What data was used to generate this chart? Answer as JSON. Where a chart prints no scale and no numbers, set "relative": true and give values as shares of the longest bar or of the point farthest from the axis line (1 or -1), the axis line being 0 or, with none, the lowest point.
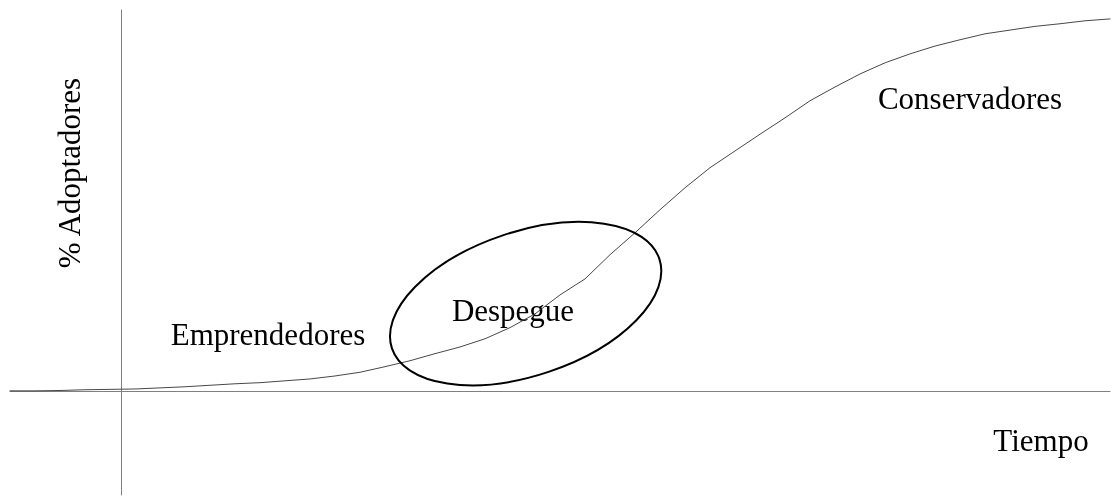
{
  "chart_data": {
    "type": "line",
    "relative": true,
    "xlabel": "Tiempo",
    "ylabel": "% Adoptadores",
    "annotations": [
      "Emprendedores",
      "Despegue",
      "Conservadores"
    ],
    "categories": [
      null,
      null,
      null,
      null,
      null,
      null,
      null,
      null,
      null,
      null,
      null,
      null,
      null,
      null,
      null,
      null,
      null,
      null,
      null,
      null,
      null,
      null,
      null,
      null,
      null,
      null,
      null,
      null,
      null,
      null,
      null,
      null,
      null,
      null,
      null,
      null,
      null,
      null,
      null,
      null,
      null,
      null,
      null,
      null,
      null
    ],
    "series": [
      {
        "color": "#333333",
        "values": [
          0,
          0,
          0.001,
          0.003,
          0.004,
          0.005,
          0.008,
          0.011,
          0.015,
          0.019,
          0.022,
          0.027,
          0.032,
          0.04,
          0.05,
          0.065,
          0.081,
          0.1,
          0.118,
          0.14,
          0.17,
          0.207,
          0.258,
          0.301,
          0.366,
          0.425,
          0.487,
          0.546,
          0.6,
          0.645,
          0.69,
          0.734,
          0.78,
          0.817,
          0.852,
          0.882,
          0.906,
          0.927,
          0.944,
          0.96,
          0.97,
          0.98,
          0.987,
          0.995,
          1
        ]
      }
    ],
    "marker": "none",
    "line_style": "solid",
    "tick_labels": false
  }
}
